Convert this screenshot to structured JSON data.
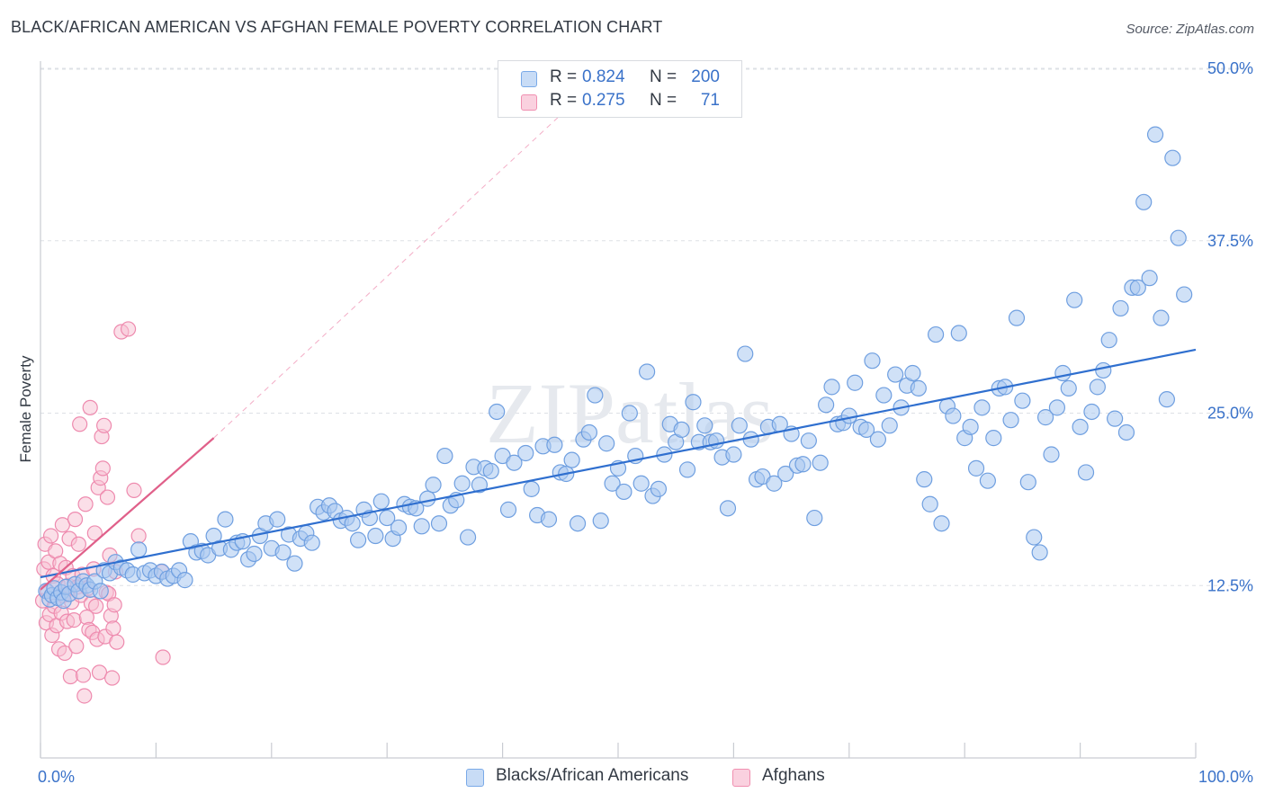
{
  "header": {
    "title": "BLACK/AFRICAN AMERICAN VS AFGHAN FEMALE POVERTY CORRELATION CHART",
    "source": "Source: ZipAtlas.com"
  },
  "watermark": "ZIPatlas",
  "legend": {
    "rows": [
      {
        "r_label": "R =",
        "r_value": "0.824",
        "n_label": "N =",
        "n_value": "200",
        "color": "#7aaae8"
      },
      {
        "r_label": "R =",
        "r_value": "0.275",
        "n_label": "N =",
        "n_value": "71",
        "color": "#f08fb0"
      }
    ]
  },
  "bottom_legend": {
    "items": [
      {
        "label": "Blacks/African Americans",
        "color": "#7aaae8"
      },
      {
        "label": "Afghans",
        "color": "#f08fb0"
      }
    ]
  },
  "chart_data": {
    "type": "scatter",
    "title": "BLACK/AFRICAN AMERICAN VS AFGHAN FEMALE POVERTY CORRELATION CHART",
    "xlabel": "",
    "ylabel": "Female Poverty",
    "xlim": [
      0,
      100
    ],
    "ylim": [
      0,
      51
    ],
    "x_tick_labels": [
      "0.0%",
      "100.0%"
    ],
    "y_ticks": [
      12.5,
      25.0,
      37.5,
      50.0
    ],
    "y_tick_labels": [
      "12.5%",
      "25.0%",
      "37.5%",
      "50.0%"
    ],
    "grid": true,
    "colors": {
      "blue_fill": "#a9c8f0",
      "blue_stroke": "#6f9fe0",
      "blue_line": "#2f6fcf",
      "pink_fill": "#f7bfd2",
      "pink_stroke": "#ee8aae",
      "pink_line": "#e0608a",
      "tick_text": "#3a72c9",
      "grid": "#dde0e5"
    },
    "series": [
      {
        "name": "Blacks/African Americans",
        "trend": {
          "x": [
            0,
            100
          ],
          "y": [
            13.1,
            29.6
          ]
        },
        "points": [
          [
            0.5,
            12.1
          ],
          [
            0.8,
            11.5
          ],
          [
            1.0,
            11.8
          ],
          [
            1.2,
            12.3
          ],
          [
            1.5,
            11.6
          ],
          [
            1.8,
            12.0
          ],
          [
            2.0,
            11.4
          ],
          [
            2.2,
            12.4
          ],
          [
            2.5,
            11.9
          ],
          [
            3.0,
            12.6
          ],
          [
            3.3,
            12.1
          ],
          [
            3.7,
            12.8
          ],
          [
            4.0,
            12.5
          ],
          [
            4.3,
            12.2
          ],
          [
            4.7,
            12.8
          ],
          [
            5.2,
            12.1
          ],
          [
            5.5,
            13.6
          ],
          [
            6.0,
            13.4
          ],
          [
            6.5,
            14.2
          ],
          [
            7.0,
            13.8
          ],
          [
            7.5,
            13.6
          ],
          [
            8.0,
            13.3
          ],
          [
            8.5,
            15.1
          ],
          [
            9.0,
            13.4
          ],
          [
            9.5,
            13.6
          ],
          [
            10.0,
            13.2
          ],
          [
            10.5,
            13.5
          ],
          [
            11.0,
            13.0
          ],
          [
            11.5,
            13.2
          ],
          [
            12.0,
            13.6
          ],
          [
            12.5,
            12.9
          ],
          [
            13.0,
            15.7
          ],
          [
            13.5,
            14.9
          ],
          [
            14.0,
            15.0
          ],
          [
            14.5,
            14.7
          ],
          [
            15.0,
            16.1
          ],
          [
            15.5,
            15.2
          ],
          [
            16.0,
            17.3
          ],
          [
            16.5,
            15.1
          ],
          [
            17.0,
            15.6
          ],
          [
            17.5,
            15.7
          ],
          [
            18.0,
            14.4
          ],
          [
            18.5,
            14.8
          ],
          [
            19.0,
            16.1
          ],
          [
            19.5,
            17.0
          ],
          [
            20.0,
            15.2
          ],
          [
            20.5,
            17.3
          ],
          [
            21.0,
            14.9
          ],
          [
            21.5,
            16.2
          ],
          [
            22.0,
            14.1
          ],
          [
            22.5,
            15.9
          ],
          [
            23.0,
            16.3
          ],
          [
            23.5,
            15.6
          ],
          [
            24.0,
            18.2
          ],
          [
            24.5,
            17.8
          ],
          [
            25.0,
            18.3
          ],
          [
            25.5,
            17.9
          ],
          [
            26.0,
            17.2
          ],
          [
            26.5,
            17.4
          ],
          [
            27.0,
            17.0
          ],
          [
            27.5,
            15.8
          ],
          [
            28.0,
            18.0
          ],
          [
            28.5,
            17.4
          ],
          [
            29.0,
            16.1
          ],
          [
            29.5,
            18.6
          ],
          [
            30.0,
            17.4
          ],
          [
            30.5,
            15.9
          ],
          [
            31.0,
            16.7
          ],
          [
            31.5,
            18.4
          ],
          [
            32.0,
            18.2
          ],
          [
            32.5,
            18.1
          ],
          [
            33.0,
            16.8
          ],
          [
            33.5,
            18.8
          ],
          [
            34.0,
            19.8
          ],
          [
            34.5,
            17.0
          ],
          [
            35.0,
            21.9
          ],
          [
            35.5,
            18.3
          ],
          [
            36.0,
            18.7
          ],
          [
            36.5,
            19.9
          ],
          [
            37.0,
            16.0
          ],
          [
            37.5,
            21.1
          ],
          [
            38.0,
            19.8
          ],
          [
            38.5,
            21.0
          ],
          [
            39.0,
            20.8
          ],
          [
            39.5,
            25.1
          ],
          [
            40.0,
            21.9
          ],
          [
            40.5,
            18.0
          ],
          [
            41.0,
            21.4
          ],
          [
            42.0,
            22.1
          ],
          [
            42.5,
            19.5
          ],
          [
            43.0,
            17.6
          ],
          [
            43.5,
            22.6
          ],
          [
            44.0,
            17.3
          ],
          [
            44.5,
            22.7
          ],
          [
            45.0,
            20.7
          ],
          [
            45.5,
            20.6
          ],
          [
            46.0,
            21.6
          ],
          [
            46.5,
            17.0
          ],
          [
            47.0,
            23.1
          ],
          [
            47.5,
            23.6
          ],
          [
            48.0,
            26.3
          ],
          [
            48.5,
            17.2
          ],
          [
            49.0,
            22.8
          ],
          [
            49.5,
            19.9
          ],
          [
            50.0,
            21.0
          ],
          [
            50.5,
            19.3
          ],
          [
            51.0,
            25.0
          ],
          [
            51.5,
            21.9
          ],
          [
            52.0,
            19.9
          ],
          [
            52.5,
            28.0
          ],
          [
            53.0,
            19.0
          ],
          [
            53.5,
            19.5
          ],
          [
            54.0,
            22.0
          ],
          [
            54.5,
            24.2
          ],
          [
            55.0,
            22.9
          ],
          [
            55.5,
            23.8
          ],
          [
            56.0,
            20.9
          ],
          [
            56.5,
            25.8
          ],
          [
            57.0,
            22.9
          ],
          [
            57.5,
            24.1
          ],
          [
            58.0,
            22.9
          ],
          [
            58.5,
            23.0
          ],
          [
            59.0,
            21.8
          ],
          [
            59.5,
            18.1
          ],
          [
            60.0,
            22.0
          ],
          [
            60.5,
            24.1
          ],
          [
            61.0,
            29.3
          ],
          [
            61.5,
            23.1
          ],
          [
            62.0,
            20.2
          ],
          [
            62.5,
            20.4
          ],
          [
            63.0,
            24.0
          ],
          [
            63.5,
            19.9
          ],
          [
            64.0,
            24.2
          ],
          [
            64.5,
            20.6
          ],
          [
            65.0,
            23.5
          ],
          [
            65.5,
            21.2
          ],
          [
            66.0,
            21.3
          ],
          [
            66.5,
            23.0
          ],
          [
            67.0,
            17.4
          ],
          [
            67.5,
            21.4
          ],
          [
            68.0,
            25.6
          ],
          [
            68.5,
            26.9
          ],
          [
            69.0,
            24.2
          ],
          [
            69.5,
            24.3
          ],
          [
            70.0,
            24.8
          ],
          [
            70.5,
            27.2
          ],
          [
            71.0,
            24.0
          ],
          [
            71.5,
            23.8
          ],
          [
            72.0,
            28.8
          ],
          [
            72.5,
            23.1
          ],
          [
            73.0,
            26.3
          ],
          [
            73.5,
            24.1
          ],
          [
            74.0,
            27.8
          ],
          [
            74.5,
            25.4
          ],
          [
            75.0,
            27.0
          ],
          [
            75.5,
            27.9
          ],
          [
            76.0,
            26.8
          ],
          [
            76.5,
            20.2
          ],
          [
            77.0,
            18.4
          ],
          [
            77.5,
            30.7
          ],
          [
            78.0,
            17.0
          ],
          [
            78.5,
            25.5
          ],
          [
            79.0,
            24.8
          ],
          [
            79.5,
            30.8
          ],
          [
            80.0,
            23.2
          ],
          [
            80.5,
            24.0
          ],
          [
            81.0,
            21.0
          ],
          [
            81.5,
            25.4
          ],
          [
            82.0,
            20.1
          ],
          [
            82.5,
            23.2
          ],
          [
            83.0,
            26.8
          ],
          [
            83.5,
            26.9
          ],
          [
            84.0,
            24.5
          ],
          [
            84.5,
            31.9
          ],
          [
            85.0,
            25.9
          ],
          [
            85.5,
            20.0
          ],
          [
            86.0,
            16.0
          ],
          [
            86.5,
            14.9
          ],
          [
            87.0,
            24.7
          ],
          [
            87.5,
            22.0
          ],
          [
            88.0,
            25.4
          ],
          [
            88.5,
            27.9
          ],
          [
            89.0,
            26.8
          ],
          [
            89.5,
            33.2
          ],
          [
            90.0,
            24.0
          ],
          [
            90.5,
            20.7
          ],
          [
            91.0,
            25.1
          ],
          [
            91.5,
            26.9
          ],
          [
            92.0,
            28.1
          ],
          [
            92.5,
            30.3
          ],
          [
            93.0,
            24.6
          ],
          [
            93.5,
            32.6
          ],
          [
            94.0,
            23.6
          ],
          [
            94.5,
            34.1
          ],
          [
            95.0,
            34.1
          ],
          [
            95.5,
            40.3
          ],
          [
            96.0,
            34.8
          ],
          [
            96.5,
            45.2
          ],
          [
            97.0,
            31.9
          ],
          [
            97.5,
            26.0
          ],
          [
            98.0,
            43.5
          ],
          [
            98.5,
            37.7
          ],
          [
            99.0,
            33.6
          ]
        ]
      },
      {
        "name": "Afghans",
        "trend": {
          "x": [
            0,
            15
          ],
          "y": [
            12.2,
            23.2
          ]
        },
        "trend_extension": {
          "x": [
            15,
            45
          ],
          "y": [
            23.2,
            46.6
          ]
        },
        "points": [
          [
            0.2,
            11.4
          ],
          [
            0.3,
            13.7
          ],
          [
            0.4,
            15.5
          ],
          [
            0.5,
            9.8
          ],
          [
            0.6,
            12.1
          ],
          [
            0.7,
            14.2
          ],
          [
            0.8,
            10.4
          ],
          [
            0.9,
            16.1
          ],
          [
            1.0,
            8.9
          ],
          [
            1.1,
            13.2
          ],
          [
            1.2,
            11.0
          ],
          [
            1.3,
            15.0
          ],
          [
            1.4,
            9.6
          ],
          [
            1.5,
            12.6
          ],
          [
            1.6,
            7.9
          ],
          [
            1.7,
            14.1
          ],
          [
            1.8,
            10.5
          ],
          [
            1.9,
            16.9
          ],
          [
            2.0,
            11.8
          ],
          [
            2.1,
            7.6
          ],
          [
            2.2,
            13.8
          ],
          [
            2.3,
            9.9
          ],
          [
            2.4,
            12.5
          ],
          [
            2.5,
            15.9
          ],
          [
            2.6,
            5.9
          ],
          [
            2.7,
            11.3
          ],
          [
            2.8,
            13.2
          ],
          [
            2.9,
            10.0
          ],
          [
            3.0,
            17.3
          ],
          [
            3.1,
            8.1
          ],
          [
            3.2,
            12.4
          ],
          [
            3.3,
            15.5
          ],
          [
            3.4,
            24.2
          ],
          [
            3.5,
            11.8
          ],
          [
            3.6,
            13.3
          ],
          [
            3.7,
            6.0
          ],
          [
            3.8,
            4.5
          ],
          [
            3.9,
            18.4
          ],
          [
            4.0,
            10.2
          ],
          [
            4.1,
            12.3
          ],
          [
            4.2,
            9.3
          ],
          [
            4.3,
            25.4
          ],
          [
            4.4,
            11.2
          ],
          [
            4.5,
            9.1
          ],
          [
            4.6,
            13.7
          ],
          [
            4.7,
            16.3
          ],
          [
            4.8,
            11.0
          ],
          [
            4.9,
            8.6
          ],
          [
            5.0,
            19.6
          ],
          [
            5.1,
            6.2
          ],
          [
            5.2,
            20.3
          ],
          [
            5.3,
            23.3
          ],
          [
            5.4,
            21.0
          ],
          [
            5.5,
            24.1
          ],
          [
            5.6,
            8.8
          ],
          [
            5.7,
            12.0
          ],
          [
            5.8,
            18.9
          ],
          [
            5.9,
            11.9
          ],
          [
            6.0,
            14.7
          ],
          [
            6.1,
            10.3
          ],
          [
            6.2,
            5.8
          ],
          [
            6.3,
            9.4
          ],
          [
            6.4,
            11.1
          ],
          [
            6.5,
            13.5
          ],
          [
            6.6,
            8.4
          ],
          [
            7.0,
            30.9
          ],
          [
            7.6,
            31.1
          ],
          [
            8.1,
            19.4
          ],
          [
            8.5,
            16.1
          ],
          [
            10.5,
            13.5
          ],
          [
            10.6,
            7.3
          ]
        ]
      }
    ]
  }
}
